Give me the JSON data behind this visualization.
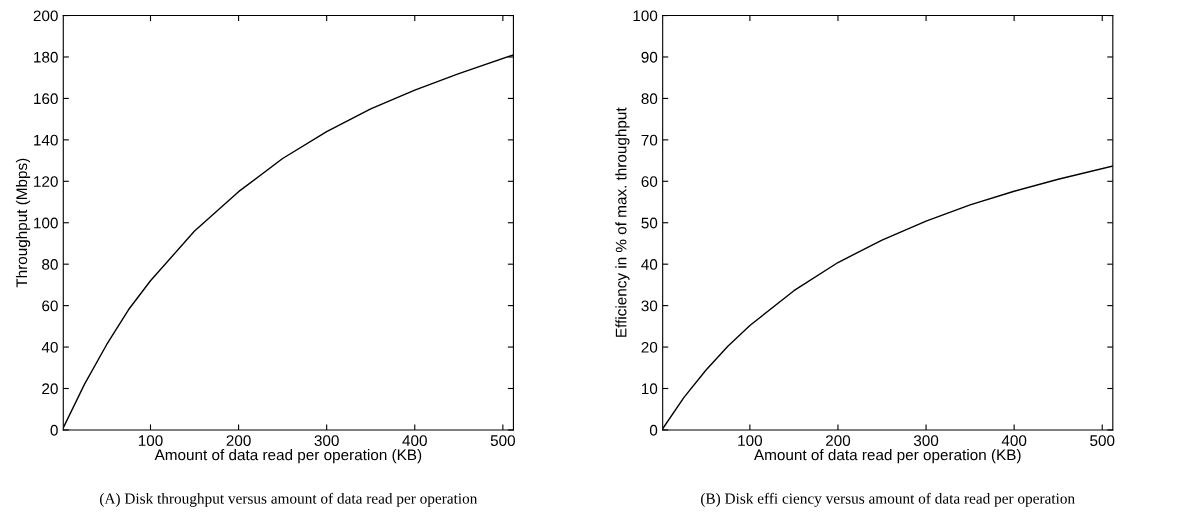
{
  "chart_data": [
    {
      "type": "line",
      "xlabel": "Amount of data read per operation (KB)",
      "ylabel": "Throughput (Mbps)",
      "x": [
        1,
        25,
        50,
        75,
        100,
        150,
        200,
        250,
        300,
        350,
        400,
        450,
        512
      ],
      "series": [
        {
          "color": "#000000",
          "values": [
            1,
            22,
            41,
            58,
            72,
            96,
            115,
            131,
            144,
            155,
            164,
            172,
            181
          ]
        }
      ],
      "xlim": [
        1,
        512
      ],
      "xticks": [
        100,
        200,
        300,
        400,
        500
      ],
      "ylim": [
        0,
        200
      ],
      "yticks": [
        0,
        20,
        40,
        60,
        80,
        100,
        120,
        140,
        160,
        180,
        200
      ],
      "grid": false,
      "legend": false,
      "annotations": [
        "(A) Disk throughput versus amount of data read per operation"
      ]
    },
    {
      "type": "line",
      "xlabel": "Amount of data read per operation (KB)",
      "ylabel": "Efficiency in % of max. throughput",
      "x": [
        1,
        25,
        50,
        75,
        100,
        150,
        200,
        250,
        300,
        350,
        400,
        450,
        512
      ],
      "series": [
        {
          "color": "#000000",
          "values": [
            0.3,
            7.8,
            14.4,
            20.2,
            25.2,
            33.6,
            40.4,
            45.8,
            50.4,
            54.3,
            57.6,
            60.5,
            63.7
          ]
        }
      ],
      "xlim": [
        1,
        512
      ],
      "xticks": [
        100,
        200,
        300,
        400,
        500
      ],
      "ylim": [
        0,
        100
      ],
      "yticks": [
        0,
        10,
        20,
        30,
        40,
        50,
        60,
        70,
        80,
        90,
        100
      ],
      "grid": false,
      "legend": false,
      "annotations": [
        "(B) Disk effi ciency versus amount of data read per operation"
      ]
    }
  ]
}
